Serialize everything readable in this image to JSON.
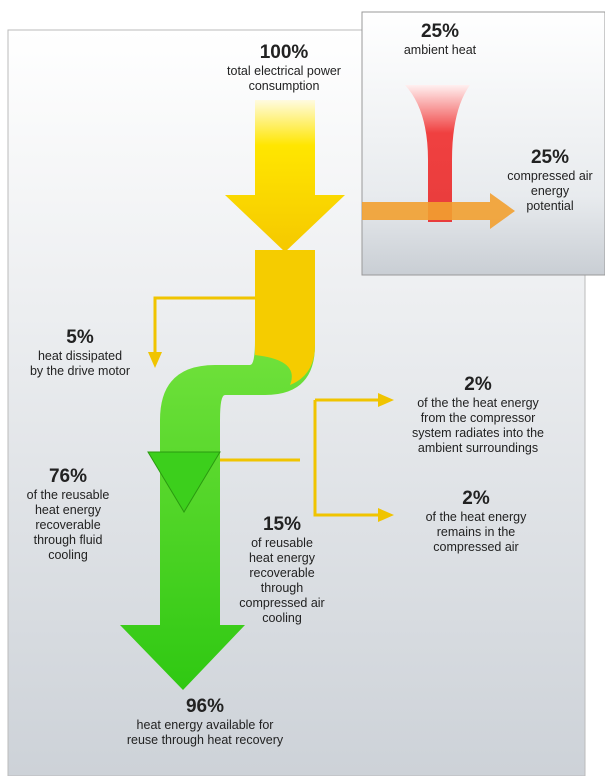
{
  "main": {
    "nodes": [
      {
        "value": "100%",
        "lines": [
          "total electrical power",
          "consumption"
        ]
      },
      {
        "value": "5%",
        "lines": [
          "heat dissipated",
          "by the drive motor"
        ]
      },
      {
        "value": "2%",
        "lines": [
          "of the the heat energy",
          "from the compressor",
          "system radiates into the",
          "ambient surroundings"
        ]
      },
      {
        "value": "76%",
        "lines": [
          "of the reusable",
          "heat energy",
          "recoverable",
          "through fluid",
          "cooling"
        ]
      },
      {
        "value": "2%",
        "lines": [
          "of the heat energy",
          "remains in the",
          "compressed air"
        ]
      },
      {
        "value": "15%",
        "lines": [
          "of reusable",
          "heat energy",
          "recoverable",
          "through",
          "compressed air",
          "cooling"
        ]
      },
      {
        "value": "96%",
        "lines": [
          "heat energy available for",
          "reuse through heat recovery"
        ]
      }
    ]
  },
  "inset": {
    "nodes": [
      {
        "value": "25%",
        "lines": [
          "ambient heat"
        ]
      },
      {
        "value": "25%",
        "lines": [
          "compressed air",
          "energy",
          "potential"
        ]
      }
    ]
  }
}
